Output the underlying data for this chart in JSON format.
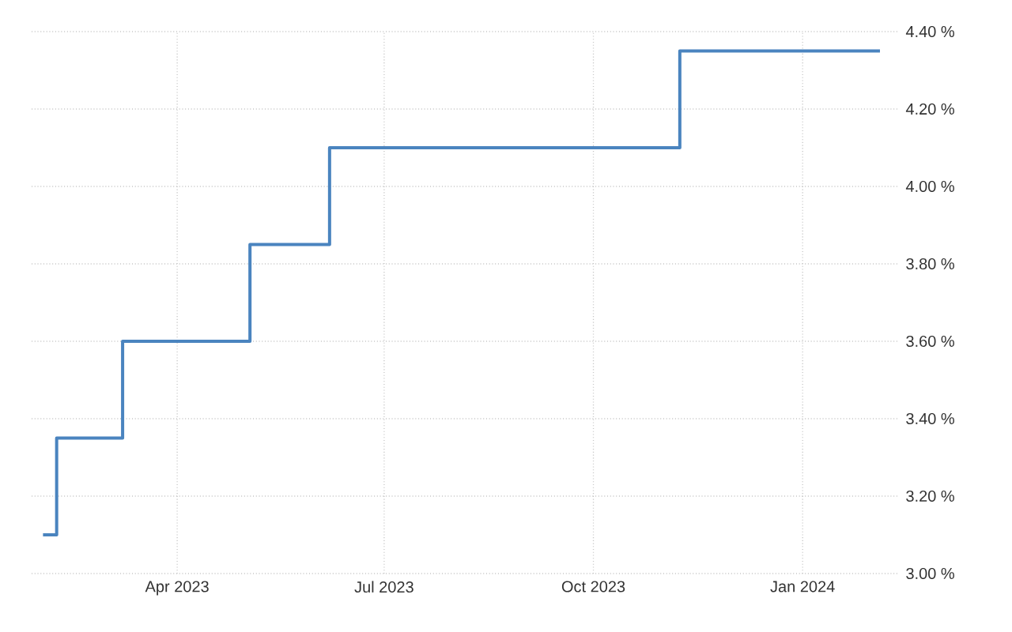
{
  "chart_data": {
    "type": "step",
    "x": [
      "2023-02-01",
      "2023-02-07",
      "2023-03-08",
      "2023-05-03",
      "2023-06-07",
      "2023-11-08",
      "2024-02-04"
    ],
    "series": [
      {
        "color": "#4a84bf",
        "values": [
          3.1,
          3.35,
          3.6,
          3.85,
          4.1,
          4.35,
          4.35
        ]
      }
    ],
    "xlim": [
      "2023-01-27",
      "2024-02-12"
    ],
    "xticks": [
      {
        "value": "2023-04-01",
        "label": "Apr 2023"
      },
      {
        "value": "2023-07-01",
        "label": "Jul 2023"
      },
      {
        "value": "2023-10-01",
        "label": "Oct 2023"
      },
      {
        "value": "2024-01-01",
        "label": "Jan 2024"
      }
    ],
    "ylim": [
      3.0,
      4.4
    ],
    "yticks": [
      {
        "value": 3.0,
        "label": "3.00 %"
      },
      {
        "value": 3.2,
        "label": "3.20 %"
      },
      {
        "value": 3.4,
        "label": "3.40 %"
      },
      {
        "value": 3.6,
        "label": "3.60 %"
      },
      {
        "value": 3.8,
        "label": "3.80 %"
      },
      {
        "value": 4.0,
        "label": "4.00 %"
      },
      {
        "value": 4.2,
        "label": "4.20 %"
      },
      {
        "value": 4.4,
        "label": "4.40 %"
      }
    ],
    "grid": true
  }
}
